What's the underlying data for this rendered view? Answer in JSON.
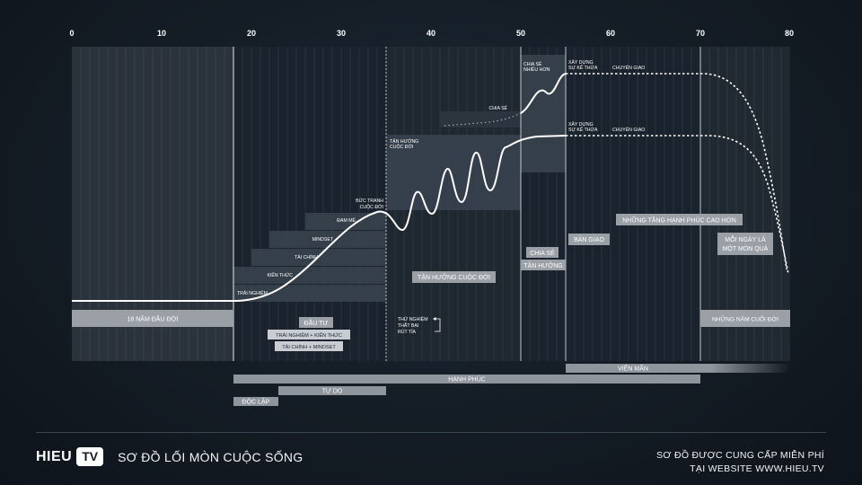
{
  "axis": {
    "ticks": [
      "0",
      "10",
      "20",
      "30",
      "40",
      "50",
      "60",
      "70",
      "80"
    ]
  },
  "labels": {
    "first_years": "18 NĂM ĐẦU ĐỜI",
    "last_years": "NHỮNG NĂM CUỐI ĐỜI",
    "trai_nghiem": "TRẢI NGHIỆM",
    "kien_thuc": "KIẾN THỨC",
    "tai_chinh": "TÀI CHÍNH",
    "mindset": "MINDSET",
    "dam_me": "ĐAM MÊ",
    "buc_tranh_1": "BỨC TRANH",
    "buc_tranh_2": "CUỘC ĐỜI",
    "tan_huong_small_1": "TẬN HƯỞNG",
    "tan_huong_small_2": "CUỘC ĐỜI",
    "tan_huong_box": "TẬN HƯỞNG CUỘC ĐỜI",
    "dau_tu": "ĐẦU TƯ",
    "trai_nghiem_kien_thuc": "TRẢI NGHIỆM + KIẾN THỨC",
    "tai_chinh_mindset": "TÀI CHÍNH + MINDSET",
    "thu_nghiem_1": "THỬ NGHIỆM",
    "thu_nghiem_2": "THẤT BẠI",
    "thu_nghiem_3": "RÚT TỈA",
    "chia_se_nhieu_1": "CHIA SẺ",
    "chia_se_nhieu_2": "NHIỀU HƠN",
    "chia_se_small": "CHIA SẺ",
    "xay_dung_1": "XÂY DỰNG",
    "xay_dung_2": "SỰ KẾ THỪA",
    "chuyen_giao": "CHUYỂN GIAO",
    "chia_se_box": "CHIA SẺ",
    "tan_huong_box2": "TẬN HƯỞNG",
    "ban_giao": "BÀN GIAO",
    "tang_hanh_phuc": "NHỮNG TẦNG HẠNH PHÚC CAO HƠN",
    "moi_ngay_1": "MỖI NGÀY LÀ",
    "moi_ngay_2": "MỘT MÓN QUÀ",
    "vien_man": "VIÊN MÃN",
    "hanh_phuc": "HẠNH PHÚC",
    "tu_do": "TỰ DO",
    "doc_lap": "ĐỘC LẬP"
  },
  "footer": {
    "brand_word": "HIEU",
    "brand_box": "TV",
    "title": "SƠ ĐỒ LỐI MÒN CUỘC SỐNG",
    "credit_line1": "SƠ ĐỒ ĐƯỢC CUNG CẤP MIỄN PHÍ",
    "credit_line2": "TẠI WEBSITE WWW.HIEU.TV"
  }
}
